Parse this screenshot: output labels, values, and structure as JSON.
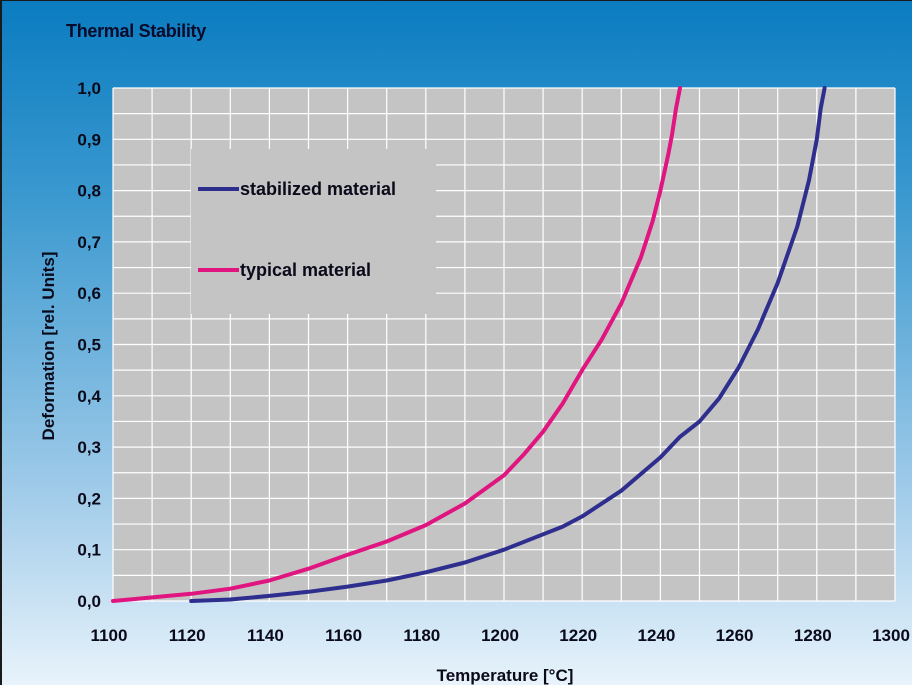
{
  "title": "Thermal Stability",
  "chart_data": {
    "type": "line",
    "xlabel": "Temperature [°C]",
    "ylabel": "Deformation [rel. Units]",
    "xlim": [
      1100,
      1300
    ],
    "ylim": [
      0,
      1.0
    ],
    "x_ticks": [
      "1100",
      "1120",
      "1140",
      "1160",
      "1180",
      "1200",
      "1220",
      "1240",
      "1260",
      "1280",
      "1300"
    ],
    "y_ticks": [
      "0,0",
      "0,1",
      "0,2",
      "0,3",
      "0,4",
      "0,5",
      "0,6",
      "0,7",
      "0,8",
      "0,9",
      "1,0"
    ],
    "grid": true,
    "legend_position": "upper-left",
    "series": [
      {
        "name": "stabilized material",
        "color": "#2e2e8f",
        "x": [
          1120,
          1130,
          1140,
          1150,
          1160,
          1170,
          1180,
          1190,
          1200,
          1210,
          1215,
          1220,
          1230,
          1240,
          1245,
          1250,
          1255,
          1260,
          1265,
          1270,
          1275,
          1278,
          1280,
          1281,
          1282
        ],
        "y": [
          0.0,
          0.003,
          0.01,
          0.018,
          0.028,
          0.04,
          0.056,
          0.075,
          0.1,
          0.13,
          0.145,
          0.165,
          0.215,
          0.28,
          0.32,
          0.35,
          0.395,
          0.455,
          0.53,
          0.62,
          0.73,
          0.82,
          0.9,
          0.96,
          1.0
        ]
      },
      {
        "name": "typical material",
        "color": "#e0157f",
        "x": [
          1100,
          1110,
          1120,
          1130,
          1140,
          1150,
          1160,
          1170,
          1180,
          1190,
          1200,
          1205,
          1210,
          1215,
          1220,
          1225,
          1230,
          1235,
          1238,
          1240,
          1242,
          1243,
          1244,
          1245
        ],
        "y": [
          0.0,
          0.007,
          0.014,
          0.024,
          0.04,
          0.063,
          0.09,
          0.116,
          0.148,
          0.19,
          0.245,
          0.285,
          0.33,
          0.385,
          0.45,
          0.51,
          0.58,
          0.67,
          0.74,
          0.8,
          0.87,
          0.91,
          0.96,
          1.0
        ]
      }
    ]
  }
}
